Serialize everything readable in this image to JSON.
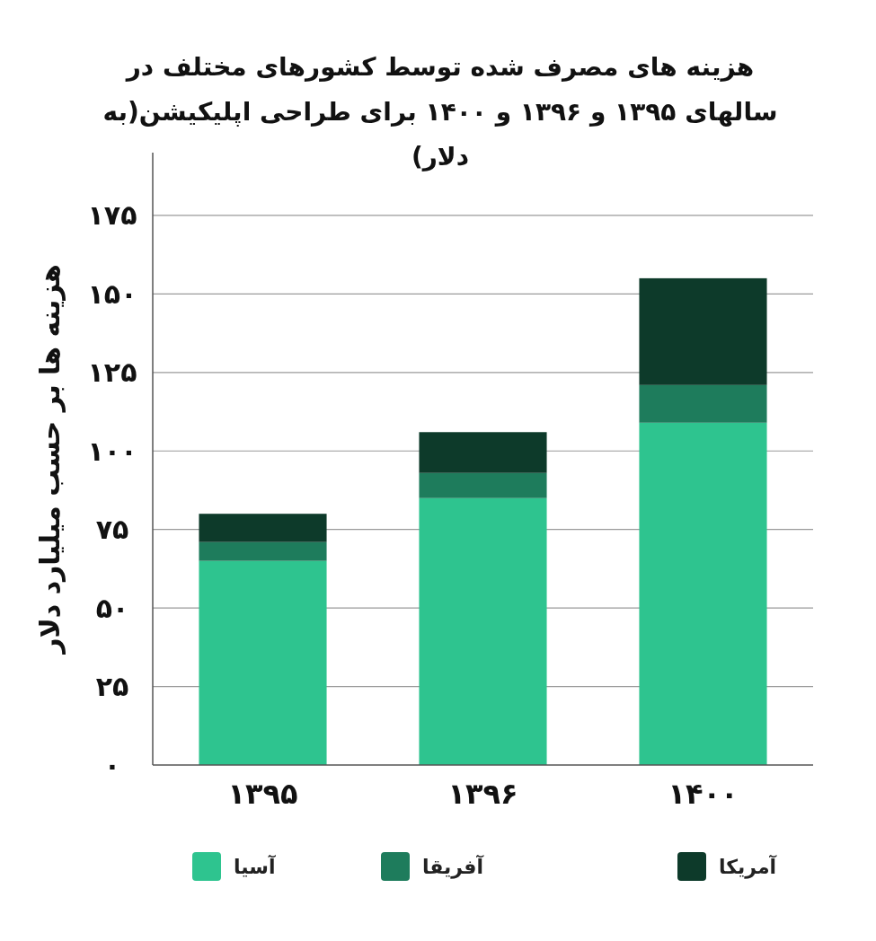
{
  "chart_data": {
    "type": "bar",
    "title": "هزینه های مصرف شده توسط کشورهای مختلف در سالهای ۱۳۹۵ و ۱۳۹۶ و ۱۴۰۰ برای طراحی اپلیکیشن(به دلار)",
    "ylabel": "هزینه ها بر حسب میلیارد دلار",
    "categories": [
      "۱۳۹۵",
      "۱۳۹۶",
      "۱۴۰۰"
    ],
    "stacked": true,
    "series": [
      {
        "name": "آسیا",
        "color": "#2ec48f",
        "values": [
          65,
          85,
          109
        ]
      },
      {
        "name": "آفریقا",
        "color": "#1e7c5c",
        "values": [
          6,
          8,
          12
        ]
      },
      {
        "name": "آمریکا",
        "color": "#0d3a2a",
        "values": [
          9,
          13,
          34
        ]
      }
    ],
    "ylim": [
      0,
      195
    ],
    "yticks": [
      {
        "value": 0,
        "label": "۰"
      },
      {
        "value": 25,
        "label": "۲۵"
      },
      {
        "value": 50,
        "label": "۵۰"
      },
      {
        "value": 75,
        "label": "۷۵"
      },
      {
        "value": 100,
        "label": "۱۰۰"
      },
      {
        "value": 125,
        "label": "۱۲۵"
      },
      {
        "value": 150,
        "label": "۱۵۰"
      },
      {
        "value": 175,
        "label": "۱۷۵"
      }
    ],
    "grid": "y",
    "legend": "bottom"
  }
}
